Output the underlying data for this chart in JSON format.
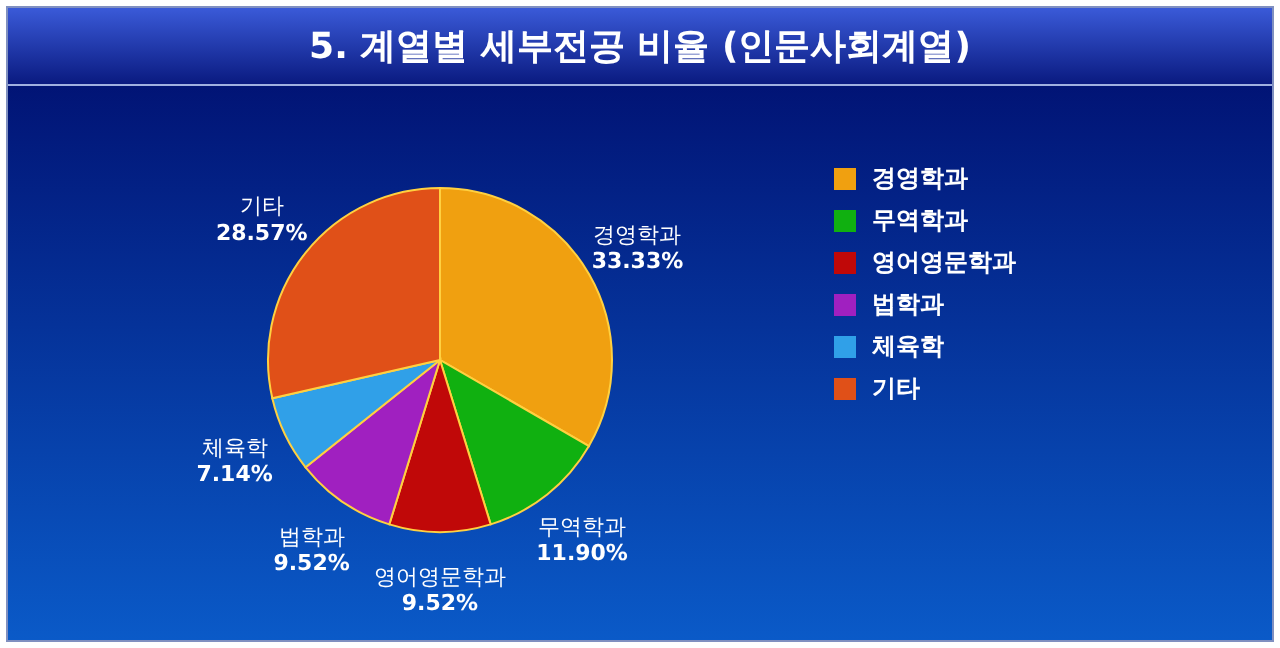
{
  "chart_data": {
    "type": "pie",
    "title": "5. 계열별 세부전공 비율 (인문사회계열)",
    "categories": [
      "경영학과",
      "무역학과",
      "영어영문학과",
      "법학과",
      "체육학",
      "기타"
    ],
    "values": [
      33.33,
      11.9,
      9.52,
      9.52,
      7.14,
      28.57
    ],
    "value_labels": [
      "33.33%",
      "11.90%",
      "9.52%",
      "9.52%",
      "7.14%",
      "28.57%"
    ],
    "colors": [
      "#f0a010",
      "#10b010",
      "#c00808",
      "#a020c0",
      "#30a0e8",
      "#e05018"
    ],
    "legend": "right"
  }
}
